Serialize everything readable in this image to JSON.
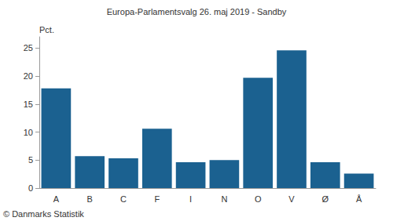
{
  "chart_data": {
    "type": "bar",
    "title": "Europa-Parlamentsvalg 26. maj 2019 - Sandby",
    "y_label": "Pct.",
    "annotation": "© Danmarks Statistik",
    "categories": [
      "A",
      "B",
      "C",
      "F",
      "I",
      "N",
      "O",
      "V",
      "Ø",
      "Å"
    ],
    "values": [
      17.8,
      5.7,
      5.3,
      10.6,
      4.6,
      5.0,
      19.7,
      24.6,
      4.6,
      2.6
    ],
    "color": "#1b6190",
    "ylim": [
      0,
      27
    ],
    "yticks": [
      0,
      5,
      10,
      15,
      20,
      25
    ],
    "grid": false
  }
}
